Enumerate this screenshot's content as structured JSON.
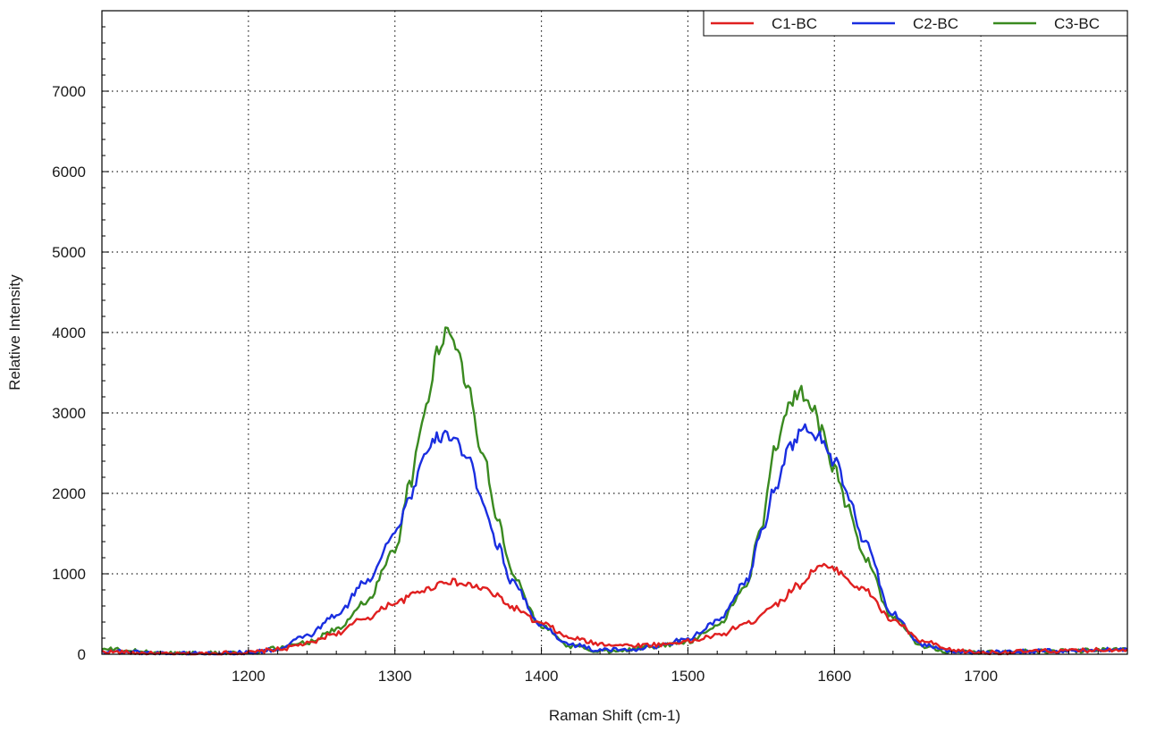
{
  "chart_data": {
    "type": "line",
    "title": "",
    "xlabel": "Raman Shift (cm-1)",
    "ylabel": "Relative Intensity",
    "xlim": [
      1100,
      1800
    ],
    "ylim": [
      0,
      8000
    ],
    "x_ticks": [
      1200,
      1300,
      1400,
      1500,
      1600,
      1700
    ],
    "y_ticks": [
      0,
      1000,
      2000,
      3000,
      4000,
      5000,
      6000,
      7000
    ],
    "x_tick_labels": [
      "1200",
      "1300",
      "1400",
      "1500",
      "1600",
      "1700"
    ],
    "y_tick_labels": [
      "0",
      "1000",
      "2000",
      "3000",
      "4000",
      "5000",
      "6000",
      "7000"
    ],
    "grid": true,
    "legend_position": "top-right",
    "series": [
      {
        "name": "C1-BC",
        "color": "#e02020",
        "points": [
          [
            1100,
            30
          ],
          [
            1150,
            0
          ],
          [
            1200,
            20
          ],
          [
            1220,
            60
          ],
          [
            1240,
            130
          ],
          [
            1260,
            260
          ],
          [
            1280,
            450
          ],
          [
            1300,
            640
          ],
          [
            1320,
            800
          ],
          [
            1335,
            910
          ],
          [
            1350,
            860
          ],
          [
            1360,
            820
          ],
          [
            1370,
            720
          ],
          [
            1380,
            580
          ],
          [
            1400,
            380
          ],
          [
            1420,
            200
          ],
          [
            1440,
            130
          ],
          [
            1460,
            110
          ],
          [
            1480,
            120
          ],
          [
            1500,
            160
          ],
          [
            1520,
            230
          ],
          [
            1540,
            380
          ],
          [
            1560,
            620
          ],
          [
            1575,
            850
          ],
          [
            1590,
            1100
          ],
          [
            1600,
            1050
          ],
          [
            1620,
            800
          ],
          [
            1640,
            420
          ],
          [
            1660,
            160
          ],
          [
            1680,
            50
          ],
          [
            1700,
            20
          ],
          [
            1750,
            40
          ],
          [
            1800,
            60
          ]
        ]
      },
      {
        "name": "C2-BC",
        "color": "#1a2ee0",
        "points": [
          [
            1100,
            40
          ],
          [
            1150,
            10
          ],
          [
            1200,
            20
          ],
          [
            1220,
            60
          ],
          [
            1240,
            230
          ],
          [
            1260,
            480
          ],
          [
            1280,
            900
          ],
          [
            1300,
            1500
          ],
          [
            1310,
            1950
          ],
          [
            1320,
            2450
          ],
          [
            1330,
            2700
          ],
          [
            1340,
            2720
          ],
          [
            1350,
            2400
          ],
          [
            1360,
            1900
          ],
          [
            1370,
            1350
          ],
          [
            1380,
            900
          ],
          [
            1400,
            350
          ],
          [
            1420,
            120
          ],
          [
            1440,
            50
          ],
          [
            1460,
            60
          ],
          [
            1480,
            100
          ],
          [
            1500,
            200
          ],
          [
            1520,
            400
          ],
          [
            1540,
            900
          ],
          [
            1550,
            1500
          ],
          [
            1560,
            2100
          ],
          [
            1570,
            2600
          ],
          [
            1580,
            2800
          ],
          [
            1590,
            2700
          ],
          [
            1600,
            2400
          ],
          [
            1610,
            1950
          ],
          [
            1620,
            1400
          ],
          [
            1640,
            500
          ],
          [
            1660,
            120
          ],
          [
            1680,
            40
          ],
          [
            1700,
            20
          ],
          [
            1750,
            40
          ],
          [
            1800,
            60
          ]
        ]
      },
      {
        "name": "C3-BC",
        "color": "#3a8a20",
        "points": [
          [
            1100,
            60
          ],
          [
            1150,
            10
          ],
          [
            1200,
            20
          ],
          [
            1220,
            70
          ],
          [
            1240,
            150
          ],
          [
            1260,
            300
          ],
          [
            1280,
            650
          ],
          [
            1300,
            1300
          ],
          [
            1310,
            2100
          ],
          [
            1320,
            3000
          ],
          [
            1330,
            3800
          ],
          [
            1336,
            4020
          ],
          [
            1340,
            3900
          ],
          [
            1350,
            3300
          ],
          [
            1360,
            2500
          ],
          [
            1370,
            1700
          ],
          [
            1380,
            1000
          ],
          [
            1400,
            350
          ],
          [
            1420,
            100
          ],
          [
            1440,
            40
          ],
          [
            1460,
            60
          ],
          [
            1480,
            100
          ],
          [
            1500,
            160
          ],
          [
            1520,
            350
          ],
          [
            1540,
            850
          ],
          [
            1550,
            1600
          ],
          [
            1560,
            2600
          ],
          [
            1570,
            3150
          ],
          [
            1576,
            3260
          ],
          [
            1585,
            3100
          ],
          [
            1590,
            2800
          ],
          [
            1600,
            2300
          ],
          [
            1610,
            1800
          ],
          [
            1620,
            1200
          ],
          [
            1640,
            450
          ],
          [
            1660,
            100
          ],
          [
            1680,
            30
          ],
          [
            1700,
            20
          ],
          [
            1750,
            40
          ],
          [
            1800,
            60
          ]
        ]
      }
    ]
  }
}
